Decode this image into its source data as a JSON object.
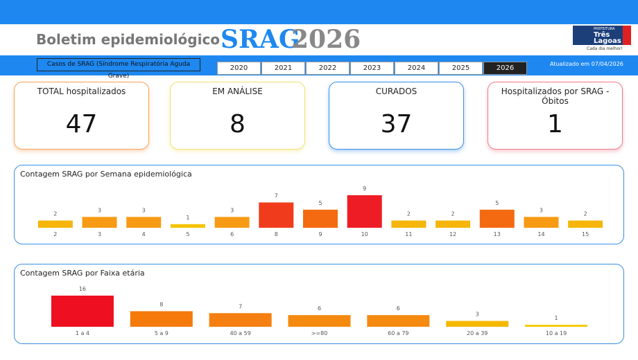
{
  "header": {
    "title": "Boletim epidemiológico",
    "brand": "SRAG",
    "year": "2026",
    "logo": {
      "org": "PREFEITURA",
      "name": "Três Lagoas",
      "slogan": "Cada dia melhor!"
    }
  },
  "filter": {
    "label": "Casos de SRAG (Síndrome Respiratória Aguda Grave)",
    "years": [
      "2020",
      "2021",
      "2022",
      "2023",
      "2024",
      "2025",
      "2026"
    ],
    "selected_index": 6,
    "updated": "Atualizado em 07/04/2026"
  },
  "kpis": [
    {
      "label": "TOTAL hospitalizados",
      "value": 47,
      "color": "#f5a25a"
    },
    {
      "label": "EM ANÁLISE",
      "value": 8,
      "color": "#eee070"
    },
    {
      "label": "CURADOS",
      "value": 37,
      "color": "#3a8ee6"
    },
    {
      "label": "Hospitalizados por SRAG - Óbitos",
      "value": 1,
      "color": "#f07a86"
    }
  ],
  "chart_data": [
    {
      "type": "bar",
      "title": "Contagem SRAG por Semana epidemiológica",
      "categories": [
        "2",
        "3",
        "4",
        "5",
        "6",
        "8",
        "9",
        "10",
        "11",
        "12",
        "13",
        "14",
        "15"
      ],
      "values": [
        2,
        3,
        3,
        1,
        3,
        7,
        5,
        9,
        2,
        2,
        5,
        3,
        2
      ],
      "colors": [
        "#f5b50a",
        "#f79a14",
        "#f79a14",
        "#f5c400",
        "#f79a14",
        "#f03c1c",
        "#f46a10",
        "#ee1c25",
        "#f5b50a",
        "#f5b50a",
        "#f46a10",
        "#f79a14",
        "#f5b50a"
      ]
    },
    {
      "type": "bar",
      "title": "Contagem SRAG por Faixa etária",
      "categories": [
        "1 a 4",
        "5 a 9",
        "40 a 59",
        ">=80",
        "60 a 79",
        "20 a 39",
        "10 a 19"
      ],
      "values": [
        16,
        8,
        7,
        6,
        6,
        3,
        1
      ],
      "colors": [
        "#ee1020",
        "#f47a0c",
        "#f57f10",
        "#f58a10",
        "#f58a10",
        "#f5b800",
        "#f5c800"
      ]
    }
  ]
}
